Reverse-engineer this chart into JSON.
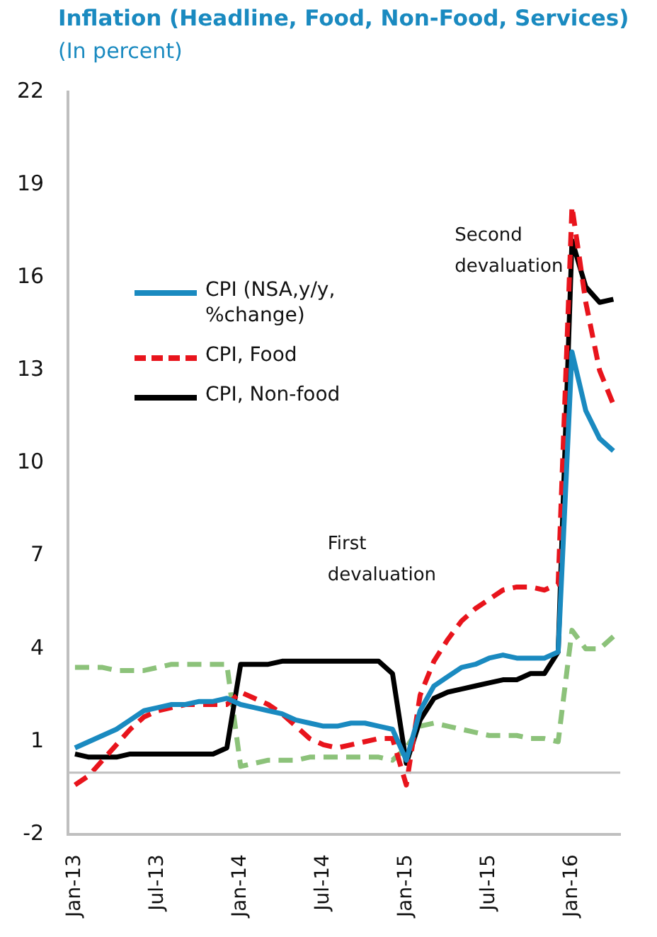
{
  "chart_data": {
    "type": "line",
    "title": "Inflation (Headline, Food, Non-Food, Services)",
    "subtitle": "(In percent)",
    "categories": [
      "Jan-13",
      null,
      null,
      null,
      null,
      null,
      "Jul-13",
      null,
      null,
      null,
      null,
      null,
      "Jan-14",
      null,
      null,
      null,
      null,
      null,
      "Jul-14",
      null,
      null,
      null,
      null,
      null,
      "Jan-15",
      null,
      null,
      null,
      null,
      null,
      "Jul-15",
      null,
      null,
      null,
      null,
      null,
      "Jan-16",
      null,
      null,
      null
    ],
    "series": [
      {
        "name": "CPI (NSA,y/y, %change)",
        "color": "#1a8ac0",
        "values": [
          0.8,
          1.0,
          1.2,
          1.4,
          1.7,
          2.0,
          2.1,
          2.2,
          2.2,
          2.3,
          2.3,
          2.4,
          2.2,
          2.1,
          2.0,
          1.9,
          1.7,
          1.6,
          1.5,
          1.5,
          1.6,
          1.6,
          1.5,
          1.4,
          0.4,
          2.0,
          2.8,
          3.1,
          3.4,
          3.5,
          3.7,
          3.8,
          3.7,
          3.7,
          3.7,
          3.9,
          13.6,
          11.7,
          10.8,
          10.4
        ]
      },
      {
        "name": "CPI, Food",
        "color": "#e8141c",
        "line_style": "dashed",
        "values": [
          -0.4,
          -0.1,
          0.4,
          0.9,
          1.4,
          1.8,
          2.0,
          2.1,
          2.2,
          2.2,
          2.2,
          2.2,
          2.6,
          2.4,
          2.2,
          1.9,
          1.5,
          1.1,
          0.9,
          0.8,
          0.9,
          1.0,
          1.1,
          1.1,
          -0.4,
          2.5,
          3.6,
          4.3,
          4.9,
          5.3,
          5.6,
          5.9,
          6.0,
          6.0,
          5.9,
          6.1,
          18.3,
          15.2,
          13.0,
          11.9
        ]
      },
      {
        "name": "CPI, Non-food",
        "color": "#000000",
        "values": [
          0.6,
          0.5,
          0.5,
          0.5,
          0.6,
          0.6,
          0.6,
          0.6,
          0.6,
          0.6,
          0.6,
          0.8,
          3.5,
          3.5,
          3.5,
          3.6,
          3.6,
          3.6,
          3.6,
          3.6,
          3.6,
          3.6,
          3.6,
          3.2,
          0.3,
          1.7,
          2.4,
          2.6,
          2.7,
          2.8,
          2.9,
          3.0,
          3.0,
          3.2,
          3.2,
          3.9,
          17.2,
          15.7,
          15.2,
          15.3
        ]
      },
      {
        "color": "#8cc27a",
        "line_style": "dashed",
        "values": [
          3.4,
          3.4,
          3.4,
          3.3,
          3.3,
          3.3,
          3.4,
          3.5,
          3.5,
          3.5,
          3.5,
          3.5,
          0.2,
          0.3,
          0.4,
          0.4,
          0.4,
          0.5,
          0.5,
          0.5,
          0.5,
          0.5,
          0.5,
          0.4,
          0.8,
          1.5,
          1.6,
          1.5,
          1.4,
          1.3,
          1.2,
          1.2,
          1.2,
          1.1,
          1.1,
          1.0,
          4.6,
          4.0,
          4.0,
          4.4
        ]
      }
    ],
    "ylim": [
      -2,
      22
    ],
    "yticks": [
      -2,
      1,
      4,
      7,
      10,
      13,
      16,
      19,
      22
    ],
    "grid": false,
    "legend": "center left",
    "marker": "none",
    "ref_lines": [
      {
        "axis": "y",
        "value": 0,
        "color": "#bfbfbf"
      }
    ],
    "annotations": [
      "First devaluation",
      "Second devaluation"
    ]
  }
}
